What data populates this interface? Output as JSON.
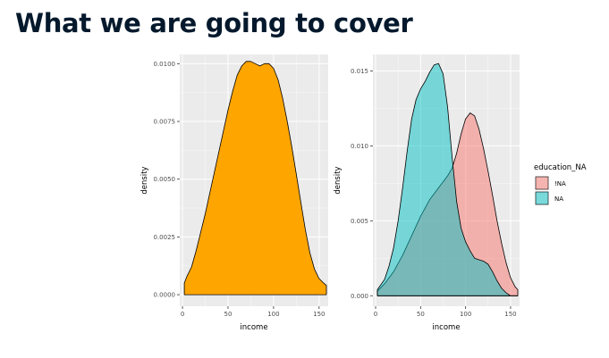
{
  "slide": {
    "title": "What we are going to cover"
  },
  "colors": {
    "title": "#05192d",
    "panel_bg": "#ebebeb",
    "grid_major": "#ffffff",
    "fill_single": "#ffa500",
    "fill_notna": "#f8766d",
    "fill_na": "#00bfc4"
  },
  "chart_data": [
    {
      "type": "area",
      "subtype": "density",
      "xlabel": "income",
      "ylabel": "density",
      "xlim": [
        -3,
        160
      ],
      "ylim": [
        -0.0005,
        0.0104
      ],
      "xticks": [
        0,
        50,
        100,
        150
      ],
      "xtick_labels": [
        "0",
        "50",
        "100",
        "150"
      ],
      "yticks": [
        0.0,
        0.0025,
        0.005,
        0.0075,
        0.01
      ],
      "ytick_labels": [
        "0.0000",
        "0.0025",
        "0.0050",
        "0.0075",
        "0.0100"
      ],
      "grid": true,
      "series": [
        {
          "color": "#ffa500",
          "x": [
            2,
            5,
            10,
            15,
            20,
            25,
            30,
            35,
            40,
            45,
            50,
            55,
            60,
            65,
            70,
            75,
            80,
            85,
            90,
            95,
            100,
            105,
            110,
            115,
            120,
            125,
            130,
            135,
            140,
            145,
            150,
            155,
            158
          ],
          "y": [
            0.0005,
            0.0008,
            0.0012,
            0.0019,
            0.0027,
            0.0035,
            0.0044,
            0.0053,
            0.0062,
            0.0071,
            0.008,
            0.0088,
            0.0095,
            0.0099,
            0.0101,
            0.0101,
            0.01,
            0.0099,
            0.01,
            0.01,
            0.0098,
            0.0093,
            0.0085,
            0.0075,
            0.0064,
            0.0052,
            0.004,
            0.0028,
            0.0018,
            0.0011,
            0.0007,
            0.0005,
            0.0004
          ]
        }
      ]
    },
    {
      "type": "area",
      "subtype": "density",
      "xlabel": "income",
      "ylabel": "density",
      "xlim": [
        -3,
        160
      ],
      "ylim": [
        -0.0007,
        0.0161
      ],
      "xticks": [
        0,
        50,
        100,
        150
      ],
      "xtick_labels": [
        "0",
        "50",
        "100",
        "150"
      ],
      "yticks": [
        0.0,
        0.005,
        0.01,
        0.015
      ],
      "ytick_labels": [
        "0.000",
        "0.005",
        "0.010",
        "0.015"
      ],
      "grid": true,
      "legend": {
        "title": "education_NA",
        "position": "right"
      },
      "series": [
        {
          "name": "!NA",
          "color": "#f8766d",
          "x": [
            2,
            10,
            20,
            30,
            40,
            50,
            60,
            70,
            80,
            85,
            90,
            95,
            100,
            105,
            110,
            115,
            120,
            125,
            130,
            135,
            140,
            145,
            150,
            155,
            158
          ],
          "y": [
            0.0003,
            0.0008,
            0.0016,
            0.0027,
            0.004,
            0.0053,
            0.0064,
            0.0072,
            0.008,
            0.0085,
            0.0095,
            0.0108,
            0.0118,
            0.0122,
            0.012,
            0.0111,
            0.0098,
            0.0083,
            0.0067,
            0.005,
            0.0035,
            0.0022,
            0.0012,
            0.0006,
            0.0004
          ]
        },
        {
          "name": "NA",
          "color": "#00bfc4",
          "x": [
            2,
            10,
            15,
            20,
            25,
            30,
            35,
            40,
            45,
            50,
            55,
            60,
            65,
            70,
            75,
            80,
            85,
            90,
            95,
            100,
            105,
            110,
            115,
            120,
            125,
            130,
            135,
            140,
            145,
            150,
            155,
            158
          ],
          "y": [
            0.0004,
            0.0011,
            0.002,
            0.0032,
            0.005,
            0.0072,
            0.0096,
            0.0118,
            0.0131,
            0.0138,
            0.0143,
            0.0149,
            0.0154,
            0.0155,
            0.0148,
            0.0126,
            0.0093,
            0.0063,
            0.0045,
            0.0036,
            0.003,
            0.0025,
            0.0024,
            0.0023,
            0.0021,
            0.0016,
            0.001,
            0.0005,
            0.0002,
            0.0,
            0.0,
            0.0
          ]
        }
      ]
    }
  ]
}
